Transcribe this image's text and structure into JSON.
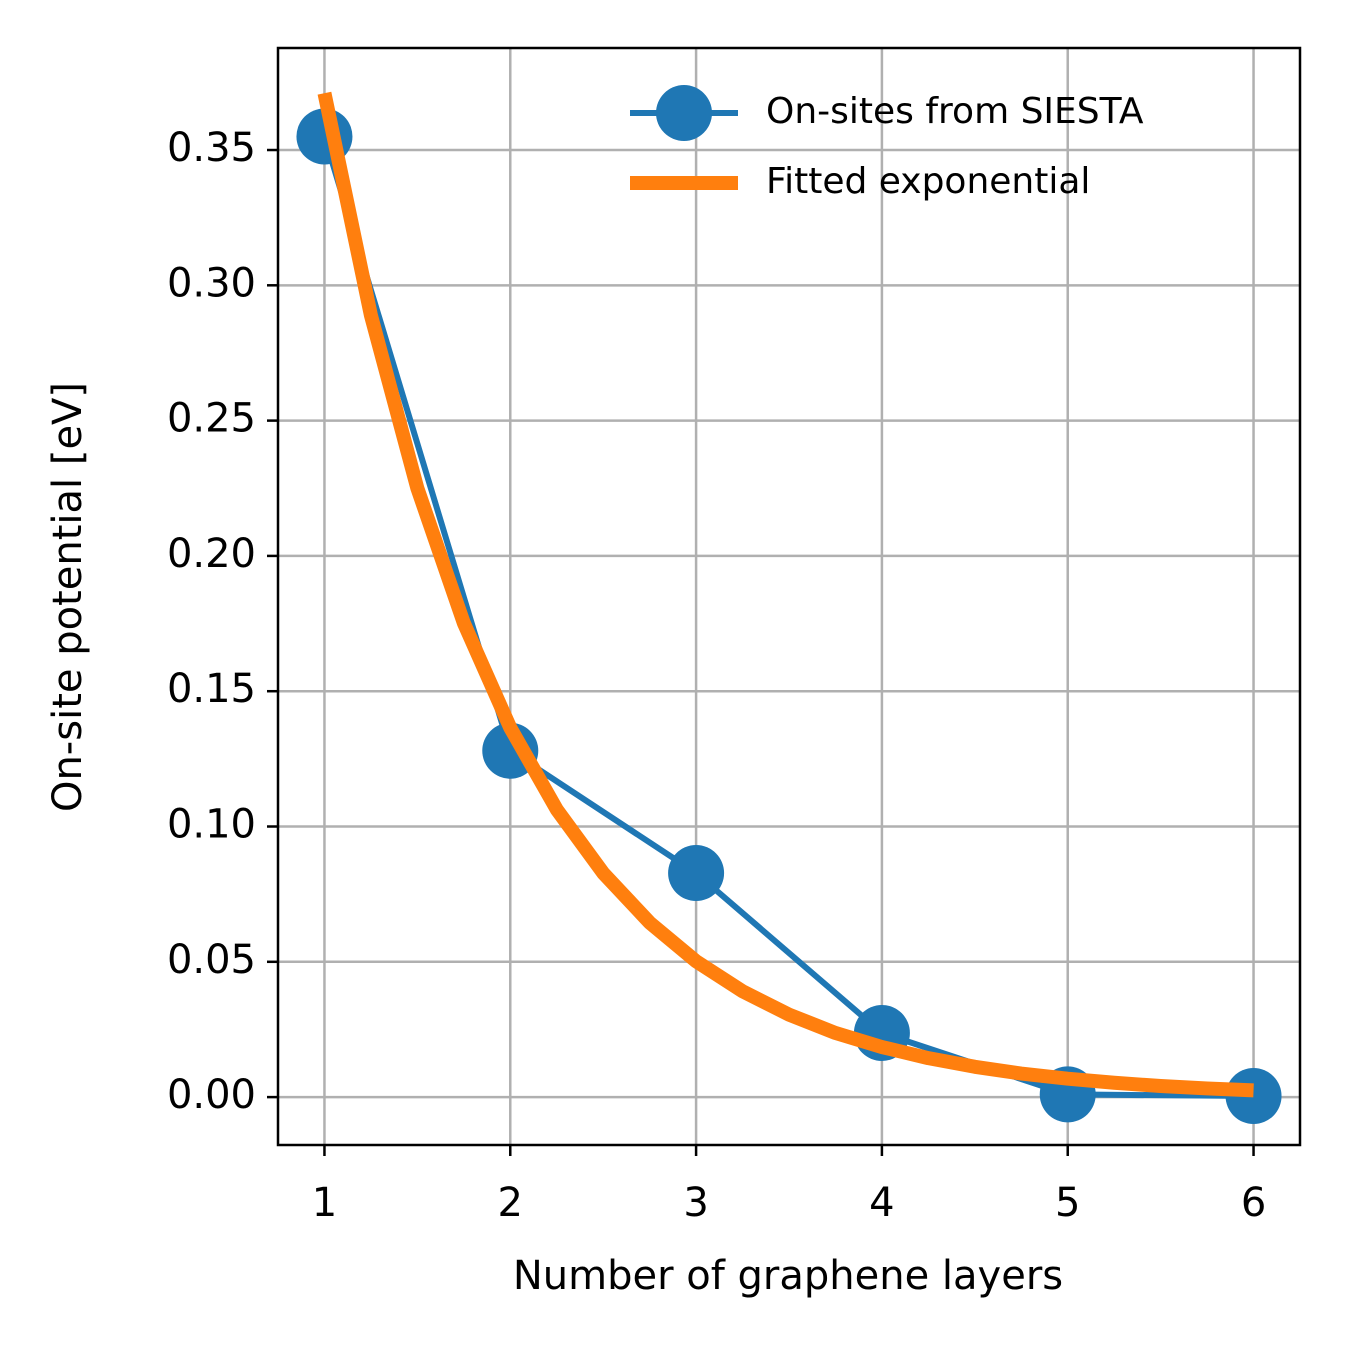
{
  "chart_data": {
    "type": "line",
    "xlabel": "Number of graphene layers",
    "ylabel": "On-site potential [eV]",
    "xlim": [
      0.75,
      6.25
    ],
    "ylim": [
      -0.0177,
      0.3877
    ],
    "xticks": [
      1,
      2,
      3,
      4,
      5,
      6
    ],
    "yticks": [
      {
        "value": 0,
        "label": "0.00"
      },
      {
        "value": 0.05,
        "label": "0.05"
      },
      {
        "value": 0.1,
        "label": "0.10"
      },
      {
        "value": 0.15,
        "label": "0.15"
      },
      {
        "value": 0.2,
        "label": "0.20"
      },
      {
        "value": 0.25,
        "label": "0.25"
      },
      {
        "value": 0.3,
        "label": "0.30"
      },
      {
        "value": 0.35,
        "label": "0.35"
      }
    ],
    "grid": true,
    "legend": "upper right",
    "series": [
      {
        "name": "On-sites from SIESTA",
        "color": "#1f77b4",
        "marker": "o",
        "x": [
          1,
          2,
          3,
          4,
          5,
          6
        ],
        "values": [
          0.355,
          0.128,
          0.0828,
          0.0237,
          0.001,
          0.0004
        ]
      },
      {
        "name": "Fitted exponential",
        "color": "#ff7f0e",
        "x": [
          1,
          1.25,
          1.5,
          1.75,
          2,
          2.25,
          2.5,
          2.75,
          3,
          3.25,
          3.5,
          3.75,
          4,
          4.25,
          4.5,
          4.75,
          5,
          5.25,
          5.5,
          5.75,
          6
        ],
        "values": [
          0.371,
          0.2889,
          0.225,
          0.1752,
          0.1365,
          0.1063,
          0.0828,
          0.0645,
          0.0502,
          0.0391,
          0.0305,
          0.0237,
          0.0185,
          0.0144,
          0.0112,
          0.0087,
          0.0068,
          0.0053,
          0.0041,
          0.0032,
          0.0025
        ]
      }
    ]
  }
}
